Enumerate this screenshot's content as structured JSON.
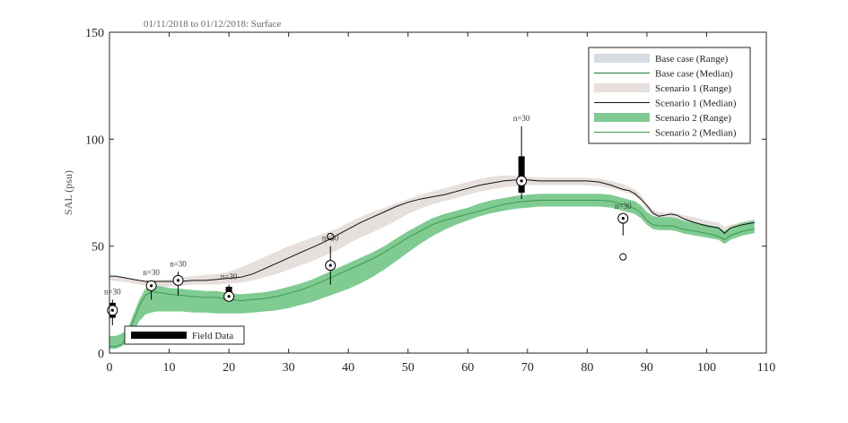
{
  "chart_data": {
    "type": "line",
    "title": "01/11/2018 to 01/12/2018: Surface",
    "xlabel": "",
    "ylabel": "SAL (psu)",
    "xlim": [
      0,
      110
    ],
    "ylim": [
      0,
      150
    ],
    "xticks": [
      0,
      10,
      20,
      30,
      40,
      50,
      60,
      70,
      80,
      90,
      100,
      110
    ],
    "yticks": [
      0,
      50,
      100,
      150
    ],
    "grid": false,
    "legend_position": "top-right",
    "colors": {
      "base_range": "#d6dde3",
      "base_median": "#1e7a3a",
      "s1_range": "#e6dfdc",
      "s1_median": "#111111",
      "s2_range": "#7fcb92",
      "s2_median": "#3e9a4e",
      "field": "#000000"
    },
    "series": [
      {
        "name": "Scenario 1 (Range)",
        "kind": "range",
        "x": [
          0,
          2,
          4,
          6,
          8,
          10,
          12,
          14,
          16,
          18,
          20,
          22,
          24,
          26,
          28,
          30,
          32,
          34,
          36,
          38,
          40,
          42,
          44,
          46,
          48,
          50,
          52,
          54,
          56,
          58,
          60,
          62,
          64,
          66,
          68,
          70,
          72,
          74,
          76,
          78,
          80,
          82,
          84,
          86,
          88,
          89,
          90,
          91,
          92,
          93,
          94,
          95,
          96,
          98,
          100,
          102,
          103,
          104,
          106,
          108
        ],
        "lower": [
          34,
          33.5,
          32.5,
          31.5,
          31,
          31,
          31.5,
          32,
          32,
          32,
          32.5,
          33,
          34,
          35.5,
          37,
          39,
          41,
          43,
          45.5,
          48,
          51,
          54,
          56.5,
          59,
          62,
          65,
          67.5,
          69.5,
          71,
          72.5,
          74,
          75.5,
          76.5,
          77.5,
          78,
          78.5,
          78.5,
          78.5,
          78.5,
          78.5,
          78.5,
          78,
          77,
          75.5,
          73.5,
          71,
          67,
          64,
          63,
          62.5,
          63,
          62.5,
          61.5,
          60.5,
          59,
          58,
          56,
          57,
          58.5,
          59.5
        ],
        "upper": [
          36,
          35.5,
          34.5,
          34,
          34,
          34.5,
          35.5,
          36,
          36.5,
          37,
          38,
          40,
          42.5,
          45,
          47.5,
          50,
          52,
          54,
          56,
          58,
          61,
          63.5,
          66,
          68,
          70,
          72,
          74,
          75.5,
          77,
          78.5,
          80,
          81.5,
          82.5,
          83,
          83,
          82.5,
          82,
          82,
          82,
          82,
          82,
          81.5,
          80.5,
          79,
          76.5,
          74,
          70,
          67,
          66,
          65.5,
          66,
          65.5,
          64.5,
          63.5,
          62,
          61,
          59,
          60,
          61.5,
          62.5
        ]
      },
      {
        "name": "Scenario 1 (Median)",
        "kind": "median",
        "x": [
          0,
          1,
          2,
          4,
          6,
          8,
          10,
          12,
          14,
          16,
          18,
          20,
          22,
          24,
          26,
          28,
          30,
          32,
          34,
          36,
          38,
          40,
          42,
          44,
          46,
          48,
          50,
          52,
          54,
          56,
          58,
          60,
          62,
          64,
          66,
          68,
          70,
          72,
          74,
          76,
          78,
          80,
          82,
          84,
          85,
          86,
          87,
          88,
          89,
          90,
          91,
          92,
          93,
          94,
          95,
          96,
          98,
          100,
          102,
          103,
          104,
          106,
          108
        ],
        "values": [
          36,
          36,
          35.5,
          34.5,
          33.5,
          33.5,
          33.5,
          33.5,
          34,
          34,
          34.5,
          35,
          35.5,
          37,
          39.5,
          42,
          44.5,
          47,
          49.5,
          52,
          55,
          58,
          61,
          63.5,
          66,
          68.5,
          70.5,
          72,
          73,
          74,
          75.5,
          77,
          78.5,
          79.5,
          80.5,
          81,
          81,
          80.5,
          80.5,
          80.5,
          80.5,
          80.5,
          80,
          78.5,
          77.5,
          76.5,
          76,
          74.5,
          72,
          69,
          65.5,
          64,
          64.5,
          65,
          64.5,
          63,
          61,
          59.5,
          58.5,
          56,
          58.5,
          60,
          61
        ]
      },
      {
        "name": "Scenario 2 (Range)",
        "kind": "range",
        "x": [
          0,
          1,
          2,
          3,
          4,
          5,
          6,
          7,
          8,
          10,
          12,
          14,
          16,
          18,
          20,
          22,
          24,
          26,
          28,
          30,
          32,
          34,
          36,
          38,
          40,
          42,
          44,
          46,
          48,
          50,
          52,
          54,
          56,
          58,
          60,
          62,
          64,
          66,
          68,
          70,
          72,
          74,
          76,
          78,
          80,
          82,
          84,
          86,
          88,
          89,
          90,
          91,
          92,
          93,
          94,
          95,
          96,
          98,
          100,
          102,
          103,
          104,
          106,
          108
        ],
        "lower": [
          2,
          2,
          3,
          5,
          10,
          15,
          18,
          19,
          19.5,
          19.5,
          19.5,
          19,
          19,
          18.5,
          18.5,
          18.5,
          19,
          19.5,
          20,
          21,
          22.5,
          24,
          26,
          28,
          30,
          32.5,
          35.5,
          39,
          43,
          47,
          51,
          54.5,
          57.5,
          60,
          62,
          64,
          65.5,
          66.5,
          67.5,
          68,
          68.5,
          68.5,
          68.5,
          68.5,
          68.5,
          68.5,
          68,
          66.5,
          65,
          63,
          60,
          58,
          57.5,
          57.5,
          57.5,
          57,
          56,
          55,
          54,
          53,
          51,
          53,
          55,
          56
        ]
      },
      {
        "name": "Scenario 2 (Median)",
        "kind": "median",
        "x": [
          0,
          1,
          2,
          3,
          4,
          5,
          6,
          7,
          8,
          10,
          12,
          14,
          16,
          18,
          20,
          22,
          24,
          26,
          28,
          30,
          32,
          34,
          36,
          38,
          40,
          42,
          44,
          46,
          48,
          50,
          52,
          54,
          56,
          58,
          60,
          62,
          64,
          66,
          68,
          70,
          72,
          74,
          76,
          78,
          80,
          82,
          84,
          86,
          88,
          89,
          90,
          91,
          92,
          93,
          94,
          95,
          96,
          98,
          100,
          102,
          103,
          104,
          106,
          108
        ],
        "values": [
          3,
          3,
          4,
          8,
          15,
          22,
          27,
          28.5,
          28.5,
          27.5,
          27,
          26.5,
          26,
          26,
          25,
          24.5,
          25,
          25.5,
          26.5,
          28,
          29.5,
          31.5,
          34,
          36.5,
          39,
          41.5,
          44,
          47,
          50.5,
          54,
          57,
          60,
          62,
          63.5,
          65,
          66.5,
          68,
          69.5,
          70.5,
          71,
          71.5,
          71.5,
          71.5,
          71.5,
          71.5,
          71.5,
          71,
          69.5,
          67.5,
          65.5,
          62,
          60,
          59.5,
          59.5,
          59.5,
          59,
          58,
          57,
          56,
          54.5,
          53,
          55,
          57,
          58
        ]
      }
    ],
    "s2_upper_note_free": true,
    "field_data": [
      {
        "x": 0.5,
        "median": 20,
        "q1": 16.5,
        "q3": 23.5,
        "min": 13,
        "max": 25,
        "outliers": [],
        "n_label": "n=30"
      },
      {
        "x": 7,
        "median": 31.5,
        "q1": 30.5,
        "q3": 32.5,
        "min": 25,
        "max": 34,
        "outliers": [],
        "n_label": "n=30"
      },
      {
        "x": 11.5,
        "median": 34,
        "q1": 33,
        "q3": 35,
        "min": 27,
        "max": 38,
        "outliers": [],
        "n_label": "n=30"
      },
      {
        "x": 20,
        "median": 26.5,
        "q1": 25.5,
        "q3": 31,
        "min": 24,
        "max": 32,
        "outliers": [],
        "n_label": "n=30"
      },
      {
        "x": 37,
        "median": 41,
        "q1": 39,
        "q3": 43,
        "min": 32,
        "max": 50,
        "outliers": [
          54.5
        ],
        "n_label": "n=30"
      },
      {
        "x": 69,
        "median": 80.5,
        "q1": 75,
        "q3": 92,
        "min": 72,
        "max": 106,
        "outliers": [],
        "n_label": "n=30"
      },
      {
        "x": 86,
        "median": 63,
        "q1": 62,
        "q3": 64.5,
        "min": 55,
        "max": 65,
        "outliers": [
          45
        ],
        "n_label": "n=30"
      }
    ],
    "legend": [
      {
        "label": "Base case (Range)",
        "swatch": "range",
        "color": "#d6dde3"
      },
      {
        "label": "Base case (Median)",
        "swatch": "line",
        "color": "#1e7a3a"
      },
      {
        "label": "Scenario 1 (Range)",
        "swatch": "range",
        "color": "#e6dfdc"
      },
      {
        "label": "Scenario 1 (Median)",
        "swatch": "line",
        "color": "#111111"
      },
      {
        "label": "Scenario 2 (Range)",
        "swatch": "range",
        "color": "#7fcb92"
      },
      {
        "label": "Scenario 2 (Median)",
        "swatch": "line",
        "color": "#3e9a4e"
      }
    ],
    "field_legend_label": "Field Data"
  }
}
